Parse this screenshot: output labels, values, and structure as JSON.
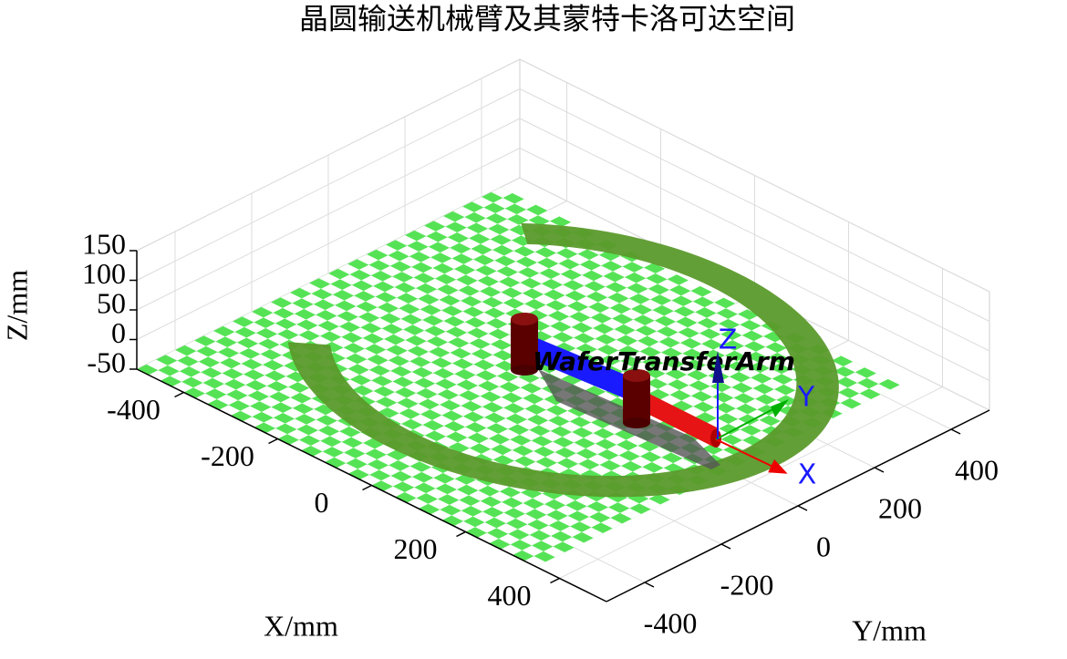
{
  "chart_data": {
    "type": "scatter3d",
    "title": "晶圆输送机械臂及其蒙特卡洛可达空间",
    "xlabel": "X/mm",
    "ylabel": "Y/mm",
    "zlabel": "Z/mm",
    "xlim": [
      -500,
      500
    ],
    "ylim": [
      -500,
      500
    ],
    "zlim": [
      -50,
      150
    ],
    "xticks": [
      -400,
      -200,
      0,
      200,
      400
    ],
    "yticks": [
      -400,
      -200,
      0,
      200,
      400
    ],
    "zticks": [
      -50,
      0,
      50,
      100,
      150
    ],
    "grid": true,
    "workspace": {
      "inner_radius": 385,
      "outer_radius": 455,
      "start_angle": 223,
      "end_angle": 498,
      "z": 0,
      "color": "#5b9a2c"
    },
    "robot_name": "WaferTransferArm",
    "frame_axes": [
      "X",
      "Y",
      "Z"
    ]
  }
}
